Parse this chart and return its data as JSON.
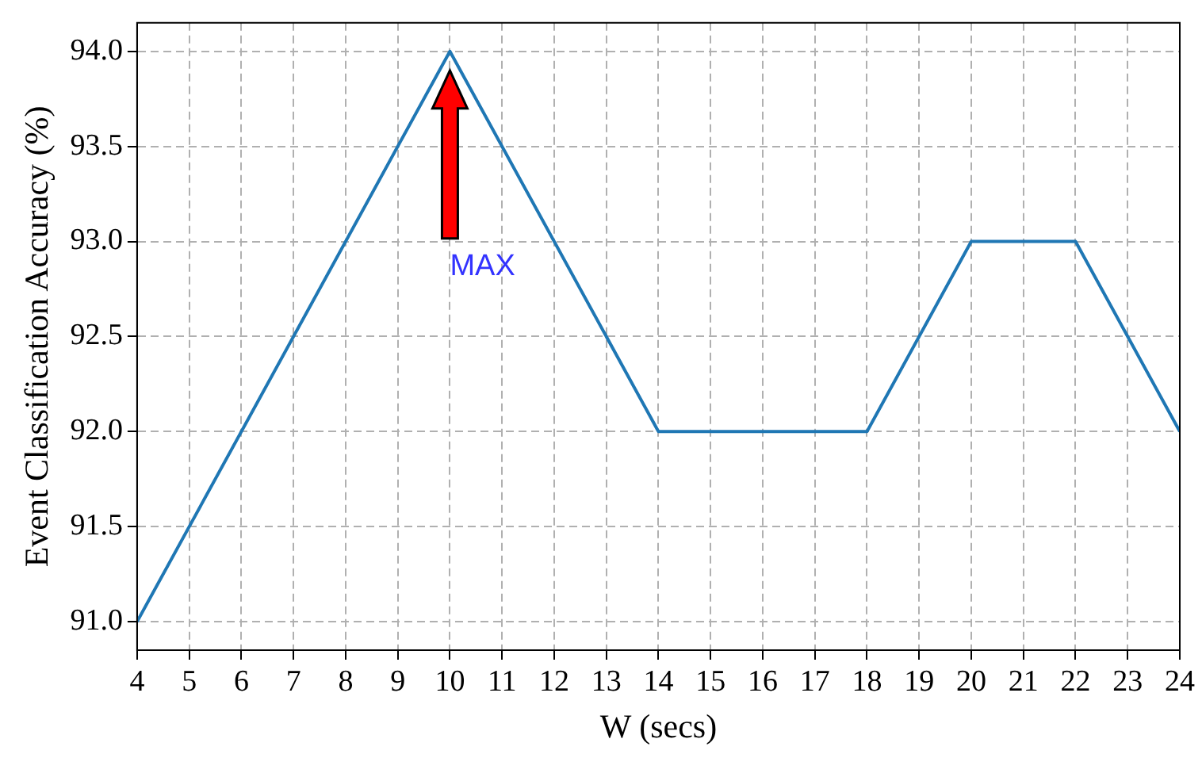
{
  "chart_data": {
    "type": "line",
    "xlabel": "W (secs)",
    "ylabel": "Event Classification Accuracy (%)",
    "x": [
      4,
      10,
      14,
      18,
      20,
      22,
      24
    ],
    "series": [
      {
        "color": "#1f77b4",
        "values": [
          91,
          94,
          92,
          92,
          93,
          93,
          92
        ]
      }
    ],
    "xlim": [
      4,
      24
    ],
    "xticks": [
      4,
      5,
      6,
      7,
      8,
      9,
      10,
      11,
      12,
      13,
      14,
      15,
      16,
      17,
      18,
      19,
      20,
      21,
      22,
      23,
      24
    ],
    "ylim": [
      90.85,
      94.15
    ],
    "yticks": [
      {
        "value": 91,
        "label": "91.0"
      },
      {
        "value": 91.5,
        "label": "91.5"
      },
      {
        "value": 92,
        "label": "92.0"
      },
      {
        "value": 92.5,
        "label": "92.5"
      },
      {
        "value": 93,
        "label": "93.0"
      },
      {
        "value": 93.5,
        "label": "93.5"
      },
      {
        "value": 94,
        "label": "94.0"
      }
    ],
    "grid": true,
    "legend": false,
    "marker": "none",
    "line_style": "solid",
    "annotations": [
      "MAX"
    ]
  }
}
